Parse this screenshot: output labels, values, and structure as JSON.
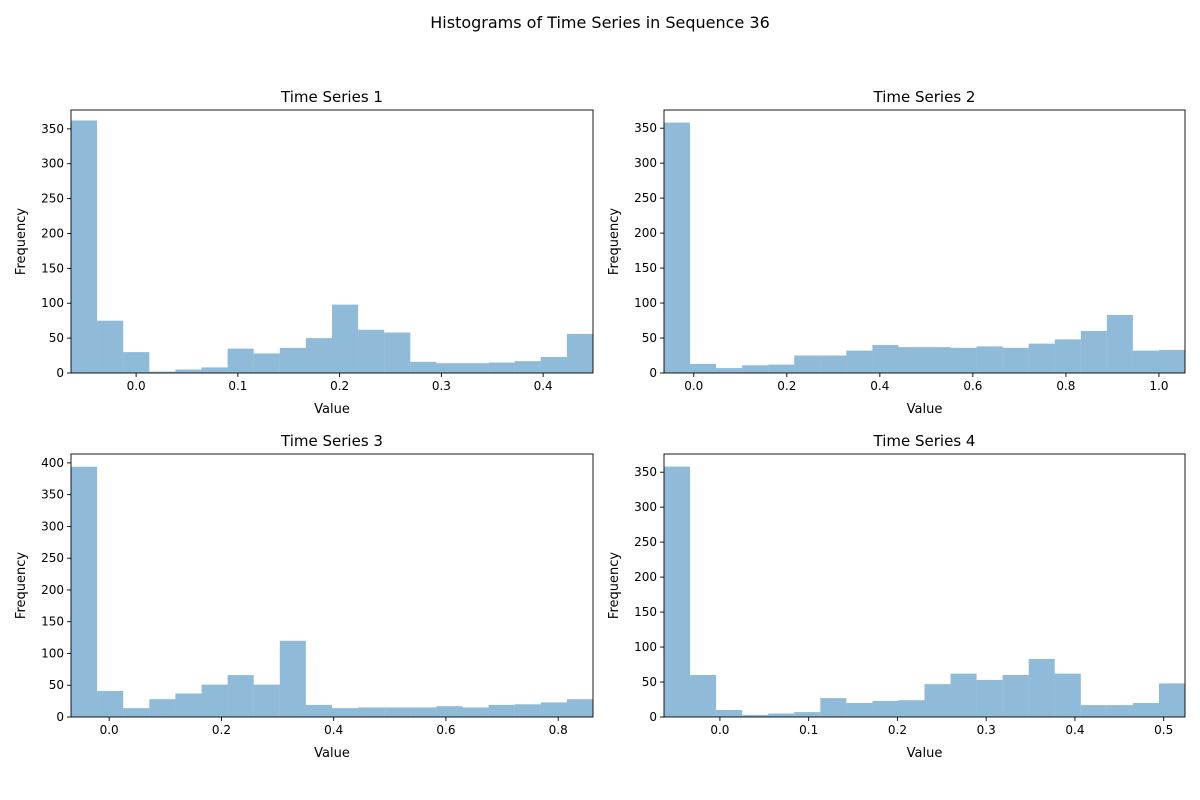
{
  "figure": {
    "suptitle": "Histograms of Time Series in Sequence 36",
    "bar_color": "#1f77b4",
    "bar_alpha": 0.5
  },
  "chart_data": [
    {
      "type": "bar",
      "title": "Time Series 1",
      "xlabel": "Value",
      "ylabel": "Frequency",
      "xlim": [
        -0.064,
        0.449
      ],
      "ylim": [
        0,
        377
      ],
      "x_ticks": [
        0.0,
        0.1,
        0.2,
        0.3,
        0.4
      ],
      "x_tick_labels": [
        "0.0",
        "0.1",
        "0.2",
        "0.3",
        "0.4"
      ],
      "y_ticks": [
        0,
        50,
        100,
        150,
        200,
        250,
        300,
        350
      ],
      "y_tick_labels": [
        "0",
        "50",
        "100",
        "150",
        "200",
        "250",
        "300",
        "350"
      ],
      "bin_start": -0.064,
      "bin_end": 0.449,
      "values": [
        362,
        75,
        30,
        2,
        5,
        8,
        35,
        28,
        36,
        50,
        98,
        62,
        58,
        16,
        14,
        14,
        15,
        17,
        23,
        56
      ]
    },
    {
      "type": "bar",
      "title": "Time Series 2",
      "xlabel": "Value",
      "ylabel": "Frequency",
      "xlim": [
        -0.064,
        1.056
      ],
      "ylim": [
        0,
        376
      ],
      "x_ticks": [
        0.0,
        0.2,
        0.4,
        0.6,
        0.8,
        1.0
      ],
      "x_tick_labels": [
        "0.0",
        "0.2",
        "0.4",
        "0.6",
        "0.8",
        "1.0"
      ],
      "y_ticks": [
        0,
        50,
        100,
        150,
        200,
        250,
        300,
        350
      ],
      "y_tick_labels": [
        "0",
        "50",
        "100",
        "150",
        "200",
        "250",
        "300",
        "350"
      ],
      "bin_start": -0.064,
      "bin_end": 1.056,
      "values": [
        358,
        13,
        7,
        11,
        12,
        25,
        25,
        32,
        40,
        37,
        37,
        36,
        38,
        36,
        42,
        48,
        60,
        83,
        32,
        33
      ]
    },
    {
      "type": "bar",
      "title": "Time Series 3",
      "xlabel": "Value",
      "ylabel": "Frequency",
      "xlim": [
        -0.068,
        0.862
      ],
      "ylim": [
        0,
        414
      ],
      "x_ticks": [
        0.0,
        0.2,
        0.4,
        0.6,
        0.8
      ],
      "x_tick_labels": [
        "0.0",
        "0.2",
        "0.4",
        "0.6",
        "0.8"
      ],
      "y_ticks": [
        0,
        50,
        100,
        150,
        200,
        250,
        300,
        350,
        400
      ],
      "y_tick_labels": [
        "0",
        "50",
        "100",
        "150",
        "200",
        "250",
        "300",
        "350",
        "400"
      ],
      "bin_start": -0.068,
      "bin_end": 0.862,
      "values": [
        394,
        41,
        14,
        28,
        37,
        51,
        66,
        51,
        120,
        19,
        14,
        15,
        15,
        15,
        17,
        15,
        19,
        20,
        23,
        28
      ]
    },
    {
      "type": "bar",
      "title": "Time Series 4",
      "xlabel": "Value",
      "ylabel": "Frequency",
      "xlim": [
        -0.063,
        0.524
      ],
      "ylim": [
        0,
        376
      ],
      "x_ticks": [
        0.0,
        0.1,
        0.2,
        0.3,
        0.4,
        0.5
      ],
      "x_tick_labels": [
        "0.0",
        "0.1",
        "0.2",
        "0.3",
        "0.4",
        "0.5"
      ],
      "y_ticks": [
        0,
        50,
        100,
        150,
        200,
        250,
        300,
        350
      ],
      "y_tick_labels": [
        "0",
        "50",
        "100",
        "150",
        "200",
        "250",
        "300",
        "350"
      ],
      "bin_start": -0.063,
      "bin_end": 0.524,
      "values": [
        358,
        60,
        10,
        3,
        5,
        7,
        27,
        20,
        23,
        24,
        47,
        62,
        53,
        60,
        83,
        62,
        17,
        17,
        20,
        48
      ]
    }
  ]
}
